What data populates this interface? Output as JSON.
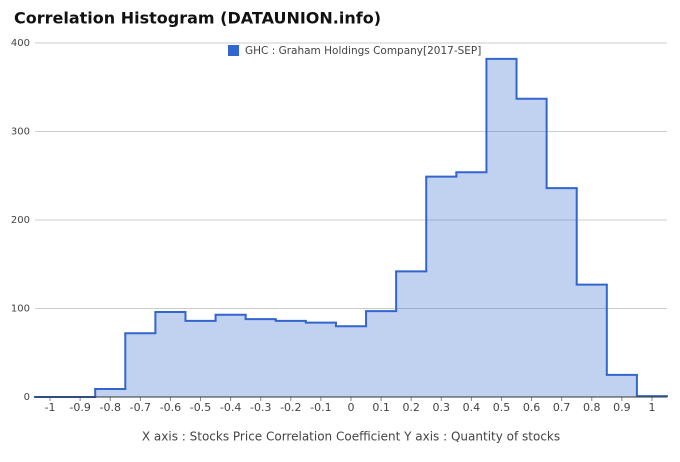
{
  "chart_data": {
    "type": "area",
    "step": true,
    "title": "Correlation Histogram (DATAUNION.info)",
    "xlabel": "X axis : Stocks Price Correlation Coefficient  Y axis : Quantity of stocks",
    "x": [
      -1,
      -0.9,
      -0.8,
      -0.7,
      -0.6,
      -0.5,
      -0.4,
      -0.3,
      -0.2,
      -0.1,
      0,
      0.1,
      0.2,
      0.3,
      0.4,
      0.5,
      0.6,
      0.7,
      0.8,
      0.9,
      1
    ],
    "series": [
      {
        "name": "GHC : Graham Holdings Company[2017-SEP]",
        "color": "#3366cc",
        "values": [
          0,
          0,
          9,
          72,
          96,
          86,
          93,
          88,
          86,
          84,
          80,
          97,
          142,
          249,
          254,
          382,
          337,
          236,
          127,
          25,
          1
        ]
      }
    ],
    "xlim": [
      -1.05,
      1.05
    ],
    "xticks": [
      -1,
      -0.9,
      -0.8,
      -0.7,
      -0.6,
      -0.5,
      -0.4,
      -0.3,
      -0.2,
      -0.1,
      0,
      0.1,
      0.2,
      0.3,
      0.4,
      0.5,
      0.6,
      0.7,
      0.8,
      0.9,
      1
    ],
    "ylim": [
      0,
      400
    ],
    "yticks": [
      0,
      100,
      200,
      300,
      400
    ],
    "grid": true,
    "legend": "top"
  }
}
